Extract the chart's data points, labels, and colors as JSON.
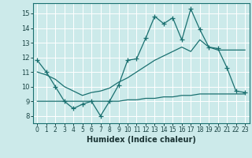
{
  "xlabel": "Humidex (Indice chaleur)",
  "bg_color": "#cceaea",
  "line_color": "#1a7070",
  "grid_color": "#ffffff",
  "xlim": [
    -0.5,
    23.5
  ],
  "ylim": [
    7.5,
    15.7
  ],
  "yticks": [
    8,
    9,
    10,
    11,
    12,
    13,
    14,
    15
  ],
  "xticks": [
    0,
    1,
    2,
    3,
    4,
    5,
    6,
    7,
    8,
    9,
    10,
    11,
    12,
    13,
    14,
    15,
    16,
    17,
    18,
    19,
    20,
    21,
    22,
    23
  ],
  "series_markers": [
    [
      11.8,
      11.0,
      10.0,
      9.0,
      8.5,
      8.8,
      9.0,
      8.0,
      9.0,
      10.1,
      11.8,
      11.9,
      13.3,
      14.8,
      14.3,
      14.7,
      13.2,
      15.3,
      13.9,
      12.7,
      12.6,
      11.3,
      9.7,
      9.6
    ]
  ],
  "series_smooth": [
    [
      11.0,
      10.8,
      10.5,
      10.0,
      9.7,
      9.4,
      9.6,
      9.7,
      9.9,
      10.3,
      10.6,
      11.0,
      11.4,
      11.8,
      12.1,
      12.4,
      12.7,
      12.4,
      13.2,
      12.7,
      12.5,
      12.5,
      12.5,
      12.5
    ],
    [
      9.0,
      9.0,
      9.0,
      9.0,
      9.0,
      9.0,
      9.0,
      9.0,
      9.0,
      9.0,
      9.1,
      9.1,
      9.2,
      9.2,
      9.3,
      9.3,
      9.4,
      9.4,
      9.5,
      9.5,
      9.5,
      9.5,
      9.5,
      9.5
    ]
  ]
}
